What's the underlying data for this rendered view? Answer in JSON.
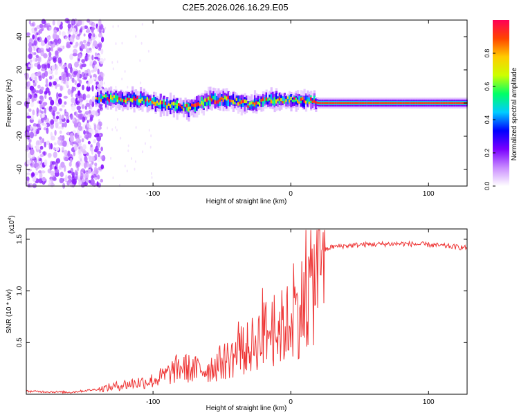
{
  "title": "C2E5.2026.026.16.29.E05",
  "chart_data": [
    {
      "type": "heatmap",
      "name": "spectrogram",
      "xlabel": "Height of straight line (km)",
      "ylabel": "Frequency (Hz)",
      "xlim": [
        -192,
        128
      ],
      "ylim": [
        -50,
        50
      ],
      "xticks": [
        -100,
        0,
        100
      ],
      "xtick_labels": [
        "-100",
        "0",
        "100"
      ],
      "yticks": [
        -40,
        -20,
        0,
        20,
        40
      ],
      "ytick_labels": [
        "-40",
        "-20",
        "0",
        "20",
        "40"
      ],
      "colorbar": {
        "label": "Normalized spectral amplitude",
        "range": [
          0,
          1
        ],
        "ticks": [
          0.0,
          0.2,
          0.4,
          0.6,
          0.8
        ],
        "tick_labels": [
          "0.0",
          "0.2",
          "0.4",
          "0.6",
          "0.8"
        ],
        "colors": [
          "#ffffff",
          "#c98cff",
          "#7a00ff",
          "#0000ff",
          "#00ccff",
          "#00ff66",
          "#ccff00",
          "#ffcc00",
          "#ff4400",
          "#ff0055"
        ]
      },
      "features": {
        "noise_region_x": [
          -192,
          -140
        ],
        "noise_amplitude_range": [
          0.0,
          0.2
        ],
        "ridge_x": [
          -142,
          128
        ],
        "ridge_center_hz": [
          [
            -140,
            3
          ],
          [
            -110,
            2
          ],
          [
            -90,
            -1
          ],
          [
            -75,
            -3
          ],
          [
            -60,
            2
          ],
          [
            -45,
            2
          ],
          [
            -30,
            -1
          ],
          [
            -15,
            2
          ],
          [
            0,
            2
          ],
          [
            15,
            1
          ],
          [
            20,
            0
          ],
          [
            128,
            0
          ]
        ],
        "ridge_peak_amplitude": 0.9
      }
    },
    {
      "type": "line",
      "name": "snr",
      "xlabel": "Height of straight line (km)",
      "ylabel": "SNR (10 * v/v)",
      "y_multiplier_label": "(x10",
      "y_multiplier_exponent": "4",
      "xlim": [
        -192,
        128
      ],
      "ylim": [
        0,
        1.6
      ],
      "xticks": [
        -100,
        0,
        100
      ],
      "xtick_labels": [
        "-100",
        "0",
        "100"
      ],
      "yticks": [
        0.5,
        1.0,
        1.5
      ],
      "ytick_labels": [
        "0.5",
        "1.0",
        "1.5"
      ],
      "line_color": "#ee3333",
      "series_trend": {
        "x": [
          -192,
          -160,
          -140,
          -120,
          -100,
          -90,
          -80,
          -70,
          -60,
          -50,
          -40,
          -30,
          -20,
          -10,
          0,
          10,
          15,
          20,
          25,
          30,
          50,
          80,
          100,
          128
        ],
        "y": [
          0.03,
          0.02,
          0.05,
          0.1,
          0.14,
          0.2,
          0.28,
          0.25,
          0.26,
          0.33,
          0.4,
          0.48,
          0.62,
          0.65,
          0.75,
          0.95,
          1.1,
          1.3,
          1.4,
          1.43,
          1.45,
          1.46,
          1.45,
          1.42
        ]
      }
    }
  ]
}
